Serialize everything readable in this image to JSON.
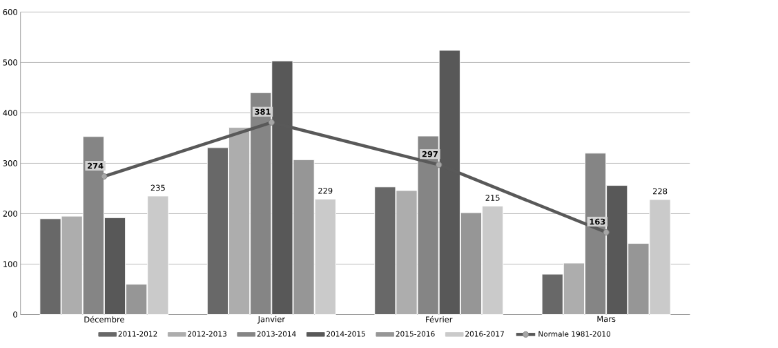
{
  "chart_data": {
    "type": "bar",
    "categories": [
      "Décembre",
      "Janvier",
      "Février",
      "Mars"
    ],
    "series": [
      {
        "name": "2011-2012",
        "color": "#686868",
        "values": [
          190,
          331,
          253,
          80
        ]
      },
      {
        "name": "2012-2013",
        "color": "#adadad",
        "values": [
          195,
          371,
          246,
          102
        ]
      },
      {
        "name": "2013-2014",
        "color": "#858585",
        "values": [
          353,
          440,
          354,
          320
        ]
      },
      {
        "name": "2014-2015",
        "color": "#585858",
        "values": [
          192,
          503,
          524,
          256
        ]
      },
      {
        "name": "2015-2016",
        "color": "#969696",
        "values": [
          60,
          307,
          202,
          141
        ]
      },
      {
        "name": "2016-2017",
        "color": "#cacaca",
        "values": [
          235,
          229,
          215,
          228
        ],
        "value_labels": [
          "235",
          "229",
          "215",
          "228"
        ]
      },
      {
        "name": "Normale 1981-2010",
        "type": "line",
        "color": "#595959",
        "marker": "circle",
        "values": [
          274,
          381,
          297,
          163
        ],
        "value_labels": [
          "274",
          "381",
          "297",
          "163"
        ]
      }
    ],
    "ylim": [
      0,
      600
    ],
    "yticks": [
      0,
      100,
      200,
      300,
      400,
      500,
      600
    ],
    "grid": "y",
    "legend": "bottom"
  }
}
